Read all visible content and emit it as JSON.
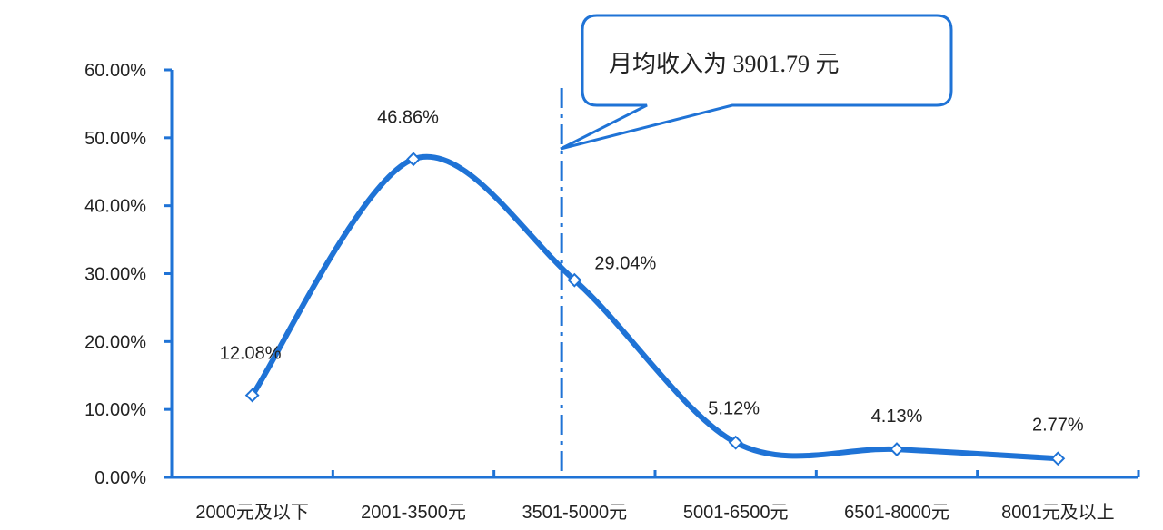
{
  "chart_data": {
    "type": "line",
    "categories": [
      "2000元及以下",
      "2001-3500元",
      "3501-5000元",
      "5001-6500元",
      "6501-8000元",
      "8001元及以上"
    ],
    "values": [
      12.08,
      46.86,
      29.04,
      5.12,
      4.13,
      2.77
    ],
    "data_labels": [
      "12.08%",
      "46.86%",
      "29.04%",
      "5.12%",
      "4.13%",
      "2.77%"
    ],
    "y_ticks": [
      "0.00%",
      "10.00%",
      "20.00%",
      "30.00%",
      "40.00%",
      "50.00%",
      "60.00%"
    ],
    "ylim": [
      0,
      60
    ],
    "smooth": true,
    "marker": "diamond",
    "line_color": "#1f73d6",
    "marker_fill": "#ffffff",
    "grid": false,
    "title": "",
    "xlabel": "",
    "ylabel": "",
    "reference_line": {
      "value": 3901.79,
      "style": "dash-dot",
      "color": "#1f73d6"
    },
    "annotation": {
      "text": "月均收入为 3901.79 元",
      "border_color": "#1f73d6"
    }
  }
}
